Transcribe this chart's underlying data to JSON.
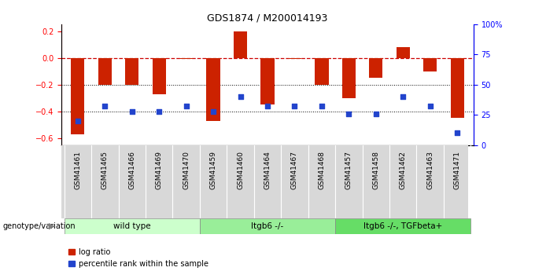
{
  "title": "GDS1874 / M200014193",
  "samples": [
    "GSM41461",
    "GSM41465",
    "GSM41466",
    "GSM41469",
    "GSM41470",
    "GSM41459",
    "GSM41460",
    "GSM41464",
    "GSM41467",
    "GSM41468",
    "GSM41457",
    "GSM41458",
    "GSM41462",
    "GSM41463",
    "GSM41471"
  ],
  "log_ratio": [
    -0.57,
    -0.2,
    -0.2,
    -0.27,
    -0.01,
    -0.47,
    0.2,
    -0.35,
    -0.01,
    -0.2,
    -0.3,
    -0.15,
    0.08,
    -0.1,
    -0.45
  ],
  "percentile_rank": [
    20,
    32,
    28,
    28,
    32,
    28,
    40,
    32,
    32,
    32,
    26,
    26,
    40,
    32,
    10
  ],
  "groups": [
    {
      "label": "wild type",
      "start": 0,
      "end": 5,
      "color": "#ccffcc"
    },
    {
      "label": "Itgb6 -/-",
      "start": 5,
      "end": 10,
      "color": "#99ee99"
    },
    {
      "label": "Itgb6 -/-, TGFbeta+",
      "start": 10,
      "end": 15,
      "color": "#66dd66"
    }
  ],
  "bar_color": "#cc2200",
  "dot_color": "#2244cc",
  "ylim_left": [
    -0.65,
    0.25
  ],
  "ylim_right": [
    0,
    100
  ],
  "y_ticks_left": [
    -0.6,
    -0.4,
    -0.2,
    0.0,
    0.2
  ],
  "y_ticks_right": [
    0,
    25,
    50,
    75,
    100
  ],
  "legend_items": [
    {
      "label": "log ratio",
      "color": "#cc2200"
    },
    {
      "label": "percentile rank within the sample",
      "color": "#2244cc"
    }
  ],
  "genotype_label": "genotype/variation"
}
